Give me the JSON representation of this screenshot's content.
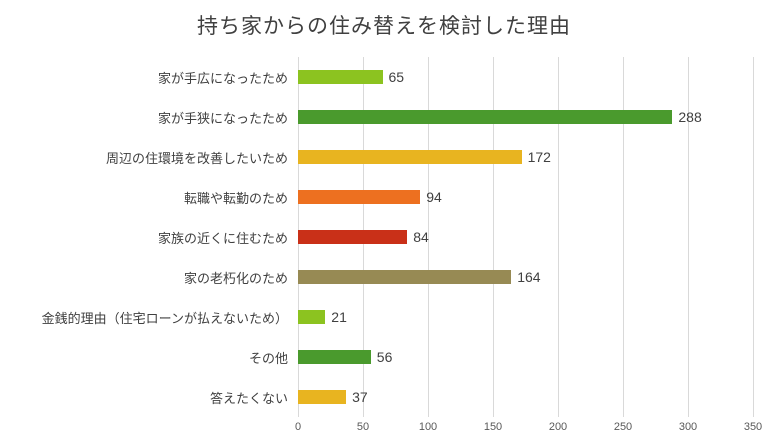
{
  "chart_data": {
    "type": "bar",
    "orientation": "horizontal",
    "title": "持ち家からの住み替えを検討した理由",
    "categories": [
      "家が手広になったため",
      "家が手狭になったため",
      "周辺の住環境を改善したいため",
      "転職や転勤のため",
      "家族の近くに住むため",
      "家の老朽化のため",
      "金銭的理由（住宅ローンが払えないため）",
      "その他",
      "答えたくない"
    ],
    "values": [
      65,
      288,
      172,
      94,
      84,
      164,
      21,
      56,
      37
    ],
    "bar_colors": [
      "#8cc320",
      "#4a9a2d",
      "#e8b420",
      "#ed7020",
      "#c93018",
      "#978a54",
      "#8cc320",
      "#4a9a2d",
      "#e8b420"
    ],
    "value_labels_shown": true,
    "xlabel": "",
    "ylabel": "",
    "xlim": [
      0,
      350
    ],
    "xticks": [
      0,
      50,
      100,
      150,
      200,
      250,
      300,
      350
    ],
    "grid": "vertical",
    "legend": "none"
  },
  "colors": {
    "background": "#ffffff",
    "gridline": "#d9d9d9",
    "title_text": "#404040",
    "category_text": "#404040",
    "value_text": "#404040",
    "tick_text": "#595959"
  }
}
